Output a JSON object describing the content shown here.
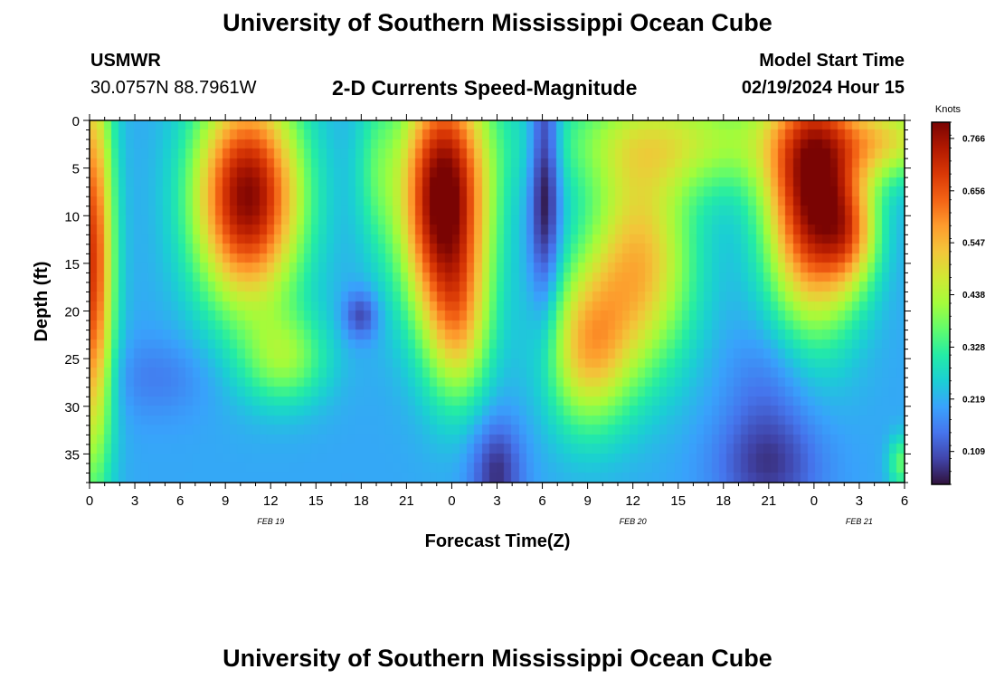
{
  "header": {
    "title": "University of Southern Mississippi Ocean Cube",
    "station": "USMWR",
    "coords": "30.0757N  88.7961W",
    "subtitle": "2-D Currents Speed-Magnitude",
    "model_start_label": "Model Start Time",
    "model_start_value": "02/19/2024 Hour 15"
  },
  "footer": {
    "title": "University of Southern Mississippi Ocean Cube"
  },
  "chart_data": {
    "type": "heatmap",
    "title": "2-D Currents Speed-Magnitude",
    "xlabel": "Forecast Time(Z)",
    "ylabel": "Depth (ft)",
    "x_ticks": [
      "0",
      "3",
      "6",
      "9",
      "12",
      "15",
      "18",
      "21",
      "0",
      "3",
      "6",
      "9",
      "12",
      "15",
      "18",
      "21",
      "0",
      "3",
      "6"
    ],
    "x_hours": [
      0,
      3,
      6,
      9,
      12,
      15,
      18,
      21,
      24,
      27,
      30,
      33,
      36,
      39,
      42,
      45,
      48,
      51,
      54
    ],
    "date_labels": [
      {
        "label": "FEB 19",
        "hour": 12
      },
      {
        "label": "FEB 20",
        "hour": 36
      },
      {
        "label": "FEB 21",
        "hour": 51
      }
    ],
    "y_ticks": [
      0,
      5,
      10,
      15,
      20,
      25,
      30,
      35
    ],
    "ylim": [
      38,
      0
    ],
    "xlim": [
      0,
      54
    ],
    "colorbar": {
      "label": "Knots",
      "ticks": [
        "0.766",
        "0.656",
        "0.547",
        "0.438",
        "0.328",
        "0.219",
        "0.109"
      ],
      "tick_values": [
        0.766,
        0.656,
        0.547,
        0.438,
        0.328,
        0.219,
        0.109
      ],
      "range": [
        0.04,
        0.8
      ],
      "stops": [
        "#30123b",
        "#4145ab",
        "#4675ed",
        "#39a2fc",
        "#1bcfd4",
        "#24eca6",
        "#61fc6c",
        "#a4fc3b",
        "#d1e834",
        "#f3c63a",
        "#fe9b2d",
        "#f36315",
        "#d93806",
        "#b11901",
        "#7a0403"
      ]
    },
    "features": [
      {
        "t": 10.5,
        "d": 8,
        "st": 2.5,
        "sd": 8,
        "a": 0.58
      },
      {
        "t": 13,
        "d": 25,
        "st": 2,
        "sd": 3.5,
        "a": 0.18
      },
      {
        "t": 23.5,
        "d": 8,
        "st": 2.1,
        "sd": 9,
        "a": 0.62
      },
      {
        "t": 24.5,
        "d": 22,
        "st": 1.5,
        "sd": 6,
        "a": 0.22
      },
      {
        "t": 36.5,
        "d": 15,
        "st": 2.5,
        "sd": 8,
        "a": 0.33
      },
      {
        "t": 33,
        "d": 24,
        "st": 2,
        "sd": 6,
        "a": 0.3
      },
      {
        "t": 39,
        "d": 2,
        "st": 6,
        "sd": 4,
        "a": 0.22
      },
      {
        "t": 48,
        "d": 8,
        "st": 2.2,
        "sd": 9,
        "a": 0.58
      },
      {
        "t": 53,
        "d": 2,
        "st": 2.5,
        "sd": 3,
        "a": 0.25
      },
      {
        "t": 50.5,
        "d": 12,
        "st": 1.3,
        "sd": 4,
        "a": 0.2
      },
      {
        "t": 0.2,
        "d": 15,
        "st": 1,
        "sd": 15,
        "a": 0.48
      },
      {
        "t": 19,
        "d": 5,
        "st": 1,
        "sd": 6,
        "a": 0.1
      },
      {
        "t": 53.8,
        "d": 36,
        "st": 0.6,
        "sd": 2,
        "a": 0.15
      },
      {
        "t": 30.2,
        "d": 6,
        "st": 0.7,
        "sd": 10,
        "a": -0.2
      },
      {
        "t": 18,
        "d": 20.5,
        "st": 0.8,
        "sd": 1.8,
        "a": -0.12
      },
      {
        "t": 27,
        "d": 37,
        "st": 1.2,
        "sd": 4,
        "a": -0.14
      },
      {
        "t": 45,
        "d": 36.5,
        "st": 2.5,
        "sd": 4,
        "a": -0.12
      },
      {
        "t": 4.5,
        "d": 27,
        "st": 2.5,
        "sd": 3,
        "a": -0.05
      },
      {
        "t": 45,
        "d": 28,
        "st": 2,
        "sd": 5,
        "a": -0.06
      }
    ],
    "base_value": 0.21
  }
}
